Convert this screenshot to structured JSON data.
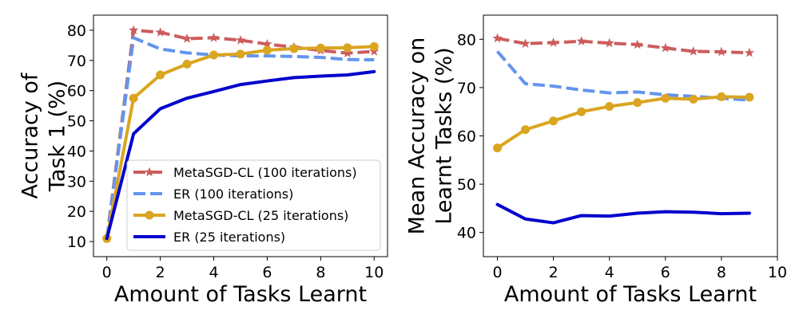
{
  "chart_data": [
    {
      "type": "line",
      "title": "",
      "xlabel": "Amount of Tasks Learnt",
      "ylabel_lines": [
        "Accuracy of",
        "Task 1 (%)"
      ],
      "xlim": [
        -0.5,
        10.5
      ],
      "ylim": [
        5,
        85
      ],
      "xticks": [
        0,
        2,
        4,
        6,
        8,
        10
      ],
      "yticks": [
        10,
        20,
        30,
        40,
        50,
        60,
        70,
        80
      ],
      "grid": false,
      "legend_position": "lower-right",
      "series": [
        {
          "name": "MetaSGD-CL (100 iterations)",
          "color": "#cd5c5c",
          "style": "dashed",
          "marker": "star",
          "x": [
            0,
            1,
            2,
            3,
            4,
            5,
            6,
            7,
            8,
            9,
            10
          ],
          "y": [
            11,
            80,
            79.3,
            77.2,
            77.5,
            76.7,
            75.4,
            74.4,
            73.3,
            72.4,
            73
          ]
        },
        {
          "name": "ER (100 iterations)",
          "color": "#6495ed",
          "style": "dashed",
          "marker": "none",
          "x": [
            0,
            1,
            2,
            3,
            4,
            5,
            6,
            7,
            8,
            9,
            10
          ],
          "y": [
            11,
            77.5,
            73.8,
            72.5,
            71.8,
            71.5,
            71.5,
            71.3,
            71,
            70.3,
            70.2
          ]
        },
        {
          "name": "MetaSGD-CL (25 iterations)",
          "color": "#daa520",
          "style": "solid",
          "marker": "circle",
          "x": [
            0,
            1,
            2,
            3,
            4,
            5,
            6,
            7,
            8,
            9,
            10
          ],
          "y": [
            11,
            57.5,
            65.2,
            68.8,
            71.8,
            72.1,
            73.4,
            73.9,
            74.1,
            74.2,
            74.6
          ]
        },
        {
          "name": "ER (25 iterations)",
          "color": "#0000cd",
          "style": "solid",
          "marker": "none",
          "x": [
            0,
            1,
            2,
            3,
            4,
            5,
            6,
            7,
            8,
            9,
            10
          ],
          "y": [
            11,
            45.7,
            54,
            57.5,
            59.7,
            62,
            63.2,
            64.3,
            64.8,
            65.2,
            66.3
          ]
        }
      ]
    },
    {
      "type": "line",
      "title": "",
      "xlabel": "Amount of Tasks Learnt",
      "ylabel_lines": [
        "Mean Accuracy on",
        "Learnt Tasks (%)"
      ],
      "xlim": [
        -0.5,
        10
      ],
      "ylim": [
        35,
        85
      ],
      "xticks": [
        0,
        2,
        4,
        6,
        8,
        10
      ],
      "yticks": [
        40,
        50,
        60,
        70,
        80
      ],
      "grid": false,
      "legend_position": "none",
      "series": [
        {
          "name": "MetaSGD-CL (100 iterations)",
          "color": "#cd5c5c",
          "style": "dashed",
          "marker": "star",
          "x": [
            0,
            1,
            2,
            3,
            4,
            5,
            6,
            7,
            8,
            9
          ],
          "y": [
            80.2,
            79.1,
            79.3,
            79.6,
            79.2,
            78.9,
            78.2,
            77.5,
            77.4,
            77.2
          ]
        },
        {
          "name": "ER (100 iterations)",
          "color": "#6495ed",
          "style": "dashed",
          "marker": "none",
          "x": [
            0,
            1,
            2,
            3,
            4,
            5,
            6,
            7,
            8,
            9
          ],
          "y": [
            77.5,
            70.8,
            70.3,
            69.5,
            68.9,
            69.1,
            68.5,
            68.2,
            67.8,
            67.4
          ]
        },
        {
          "name": "MetaSGD-CL (25 iterations)",
          "color": "#daa520",
          "style": "solid",
          "marker": "circle",
          "x": [
            0,
            1,
            2,
            3,
            4,
            5,
            6,
            7,
            8,
            9
          ],
          "y": [
            57.5,
            61.3,
            63.1,
            65,
            66.1,
            66.9,
            67.8,
            67.6,
            68.1,
            68
          ]
        },
        {
          "name": "ER (25 iterations)",
          "color": "#0000cd",
          "style": "solid",
          "marker": "none",
          "x": [
            0,
            1,
            2,
            3,
            4,
            5,
            6,
            7,
            8,
            9
          ],
          "y": [
            45.8,
            42.8,
            42,
            43.5,
            43.4,
            44,
            44.3,
            44.2,
            43.9,
            44
          ]
        }
      ]
    }
  ]
}
